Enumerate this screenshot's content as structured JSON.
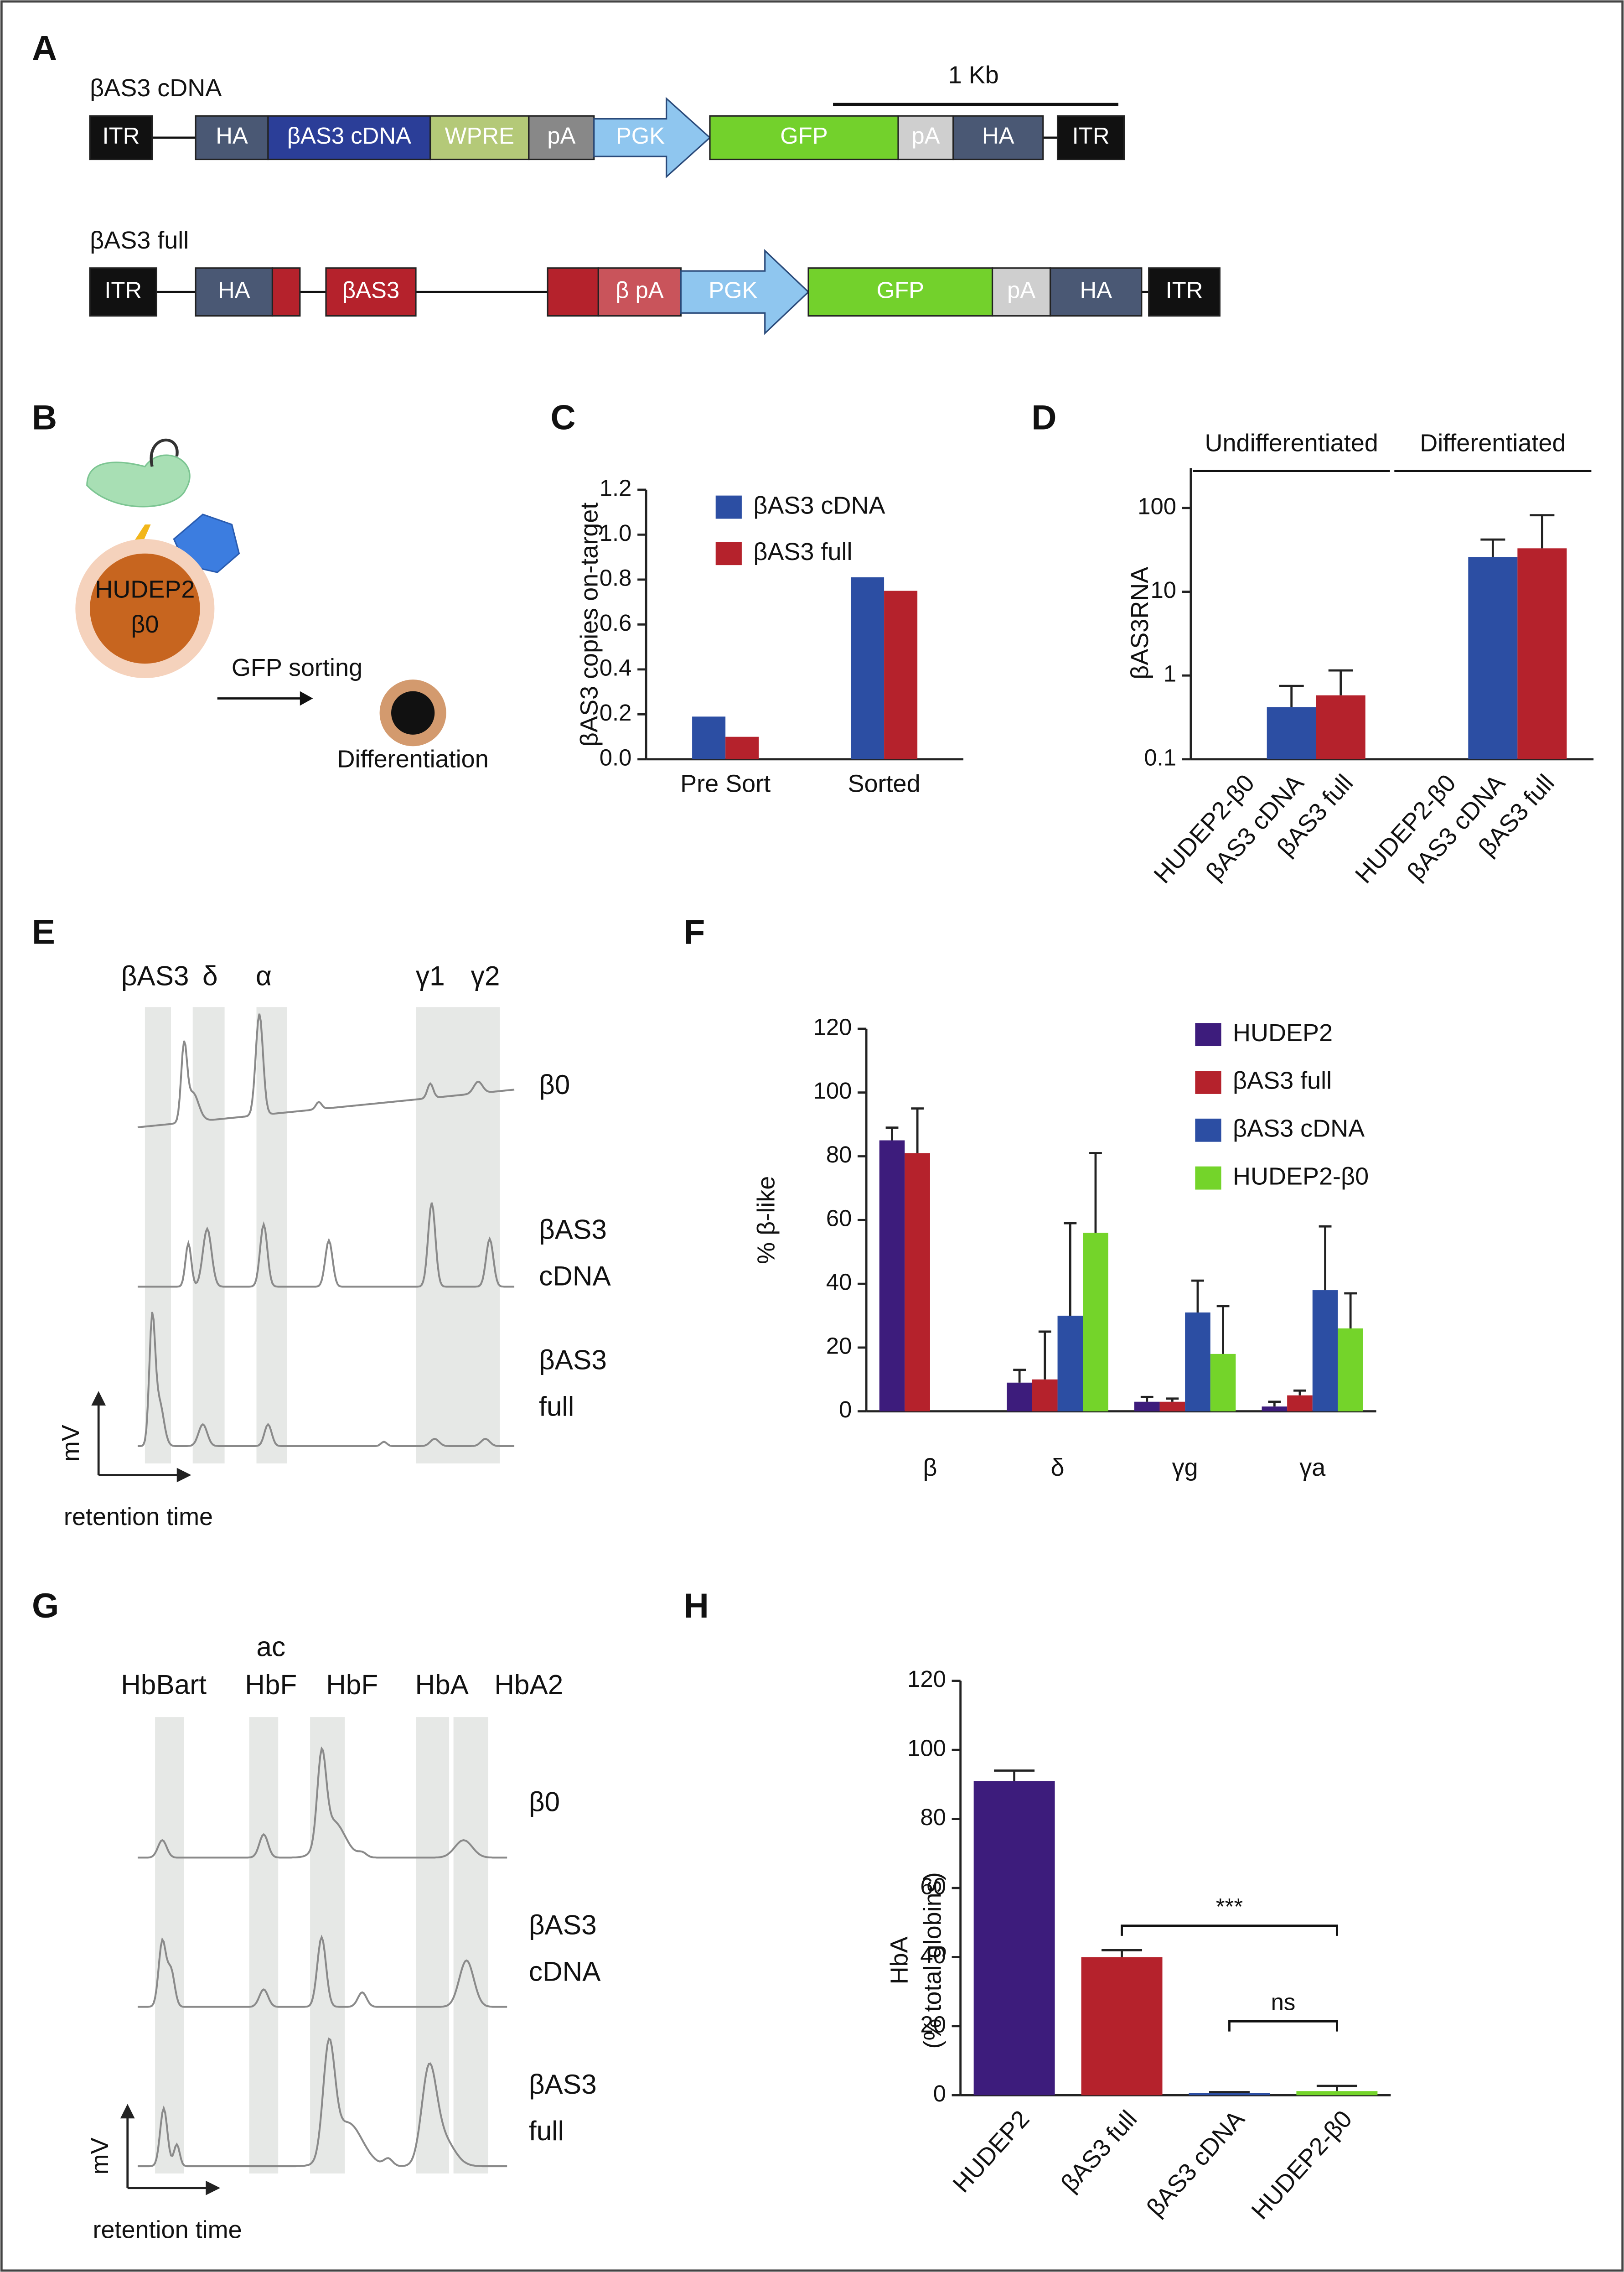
{
  "chart_data": [
    {
      "panel": "C",
      "type": "bar",
      "y_label": "βAS3 copies on-target",
      "categories": [
        "Pre Sort",
        "Sorted"
      ],
      "series": [
        {
          "name": "βAS3 cDNA",
          "color": "#2c4ea3",
          "values": [
            0.19,
            0.81
          ]
        },
        {
          "name": "βAS3 full",
          "color": "#b5222c",
          "values": [
            0.1,
            0.75
          ]
        }
      ],
      "ylim": [
        0,
        1.2
      ],
      "yticks": [
        {
          "value": 0,
          "label": "0.0"
        },
        0.2,
        0.4,
        0.6,
        0.8,
        {
          "value": 1,
          "label": "1.0"
        },
        1.2
      ],
      "legend": "upper left"
    },
    {
      "panel": "D",
      "type": "bar",
      "log": true,
      "y_label": "βAS3RNA",
      "categories": [
        "Undifferentiated",
        "Differentiated"
      ],
      "series": [
        {
          "name": "HUDEP2-β0",
          "values": [
            null,
            null
          ]
        },
        {
          "name": "βAS3 cDNA",
          "color": "#2c4ea3",
          "values": [
            0.42,
            26
          ],
          "errors": [
            0.33,
            16
          ]
        },
        {
          "name": "βAS3 full",
          "color": "#b5222c",
          "values": [
            0.58,
            33
          ],
          "errors": [
            0.57,
            49
          ]
        }
      ],
      "ylim": [
        0.1,
        300
      ],
      "yticks": [
        0.1,
        1,
        10,
        100
      ]
    },
    {
      "panel": "F",
      "type": "bar",
      "y_label": "% β-like",
      "categories": [
        "β",
        "δ",
        "γg",
        "γa"
      ],
      "series": [
        {
          "name": "HUDEP2",
          "color": "#3d1c7c",
          "values": [
            85,
            9,
            3,
            1.5
          ],
          "errors": [
            4,
            4,
            1.5,
            1.5
          ]
        },
        {
          "name": "βAS3 full",
          "color": "#b5222c",
          "values": [
            81,
            10,
            3,
            5
          ],
          "errors": [
            14,
            15,
            1,
            1.5
          ]
        },
        {
          "name": "βAS3 cDNA",
          "color": "#2c4ea3",
          "values": [
            null,
            30,
            31,
            38
          ],
          "errors": [
            null,
            29,
            10,
            20
          ]
        },
        {
          "name": "HUDEP2-β0",
          "color": "#74d42a",
          "values": [
            null,
            56,
            18,
            26
          ],
          "errors": [
            null,
            25,
            15,
            11
          ]
        }
      ],
      "ylim": [
        0,
        120
      ],
      "yticks": [
        0,
        20,
        40,
        60,
        80,
        100,
        120
      ],
      "legend": "upper right"
    },
    {
      "panel": "H",
      "type": "bar",
      "y_label": [
        "HbA",
        "(% total globins)"
      ],
      "categories": [
        "HUDEP2",
        "βAS3 full",
        "βAS3 cDNA",
        "HUDEP2-β0"
      ],
      "values": [
        91,
        40,
        0.7,
        1.2
      ],
      "errors": [
        3,
        2,
        0.2,
        1.5
      ],
      "colors": [
        "#3d1c7c",
        "#b5222c",
        "#2c4ea3",
        "#74d42a"
      ],
      "annotations": [
        "***",
        "ns"
      ],
      "ylim": [
        0,
        120
      ],
      "yticks": [
        0,
        20,
        40,
        60,
        80,
        100,
        120
      ]
    }
  ],
  "panels": {
    "A": {
      "letter": "A",
      "scale": "1 Kb",
      "constructs": [
        {
          "name": "βAS3 cDNA",
          "parts": [
            "ITR",
            "HA",
            "βAS3 cDNA",
            "WPRE",
            "pA",
            "PGK",
            "GFP",
            "pA",
            "HA",
            "ITR"
          ]
        },
        {
          "name": "βAS3 full",
          "parts": [
            "ITR",
            "HA",
            "βAS3",
            "β pA",
            "PGK",
            "GFP",
            "pA",
            "HA",
            "ITR"
          ]
        }
      ]
    },
    "B": {
      "letter": "B",
      "cell": "HUDEP2",
      "genotype": "β0",
      "step": "GFP sorting",
      "result": "Differentiation"
    },
    "E": {
      "letter": "E",
      "peaks": [
        "βAS3",
        "δ",
        "α",
        "γ1",
        "γ2"
      ],
      "traces": [
        [
          "β0"
        ],
        [
          "βAS3",
          "cDNA"
        ],
        [
          "βAS3",
          "full"
        ]
      ],
      "y_axis": "mV",
      "x_axis": "retention time"
    },
    "G": {
      "letter": "G",
      "peaks": [
        [
          "HbBart"
        ],
        [
          "ac",
          "HbF"
        ],
        [
          "HbF"
        ],
        [
          "HbA"
        ],
        [
          "HbA2"
        ]
      ],
      "traces": [
        [
          "β0"
        ],
        [
          "βAS3",
          "cDNA"
        ],
        [
          "βAS3",
          "full"
        ]
      ],
      "y_axis": "mV",
      "x_axis": "retention time"
    }
  }
}
